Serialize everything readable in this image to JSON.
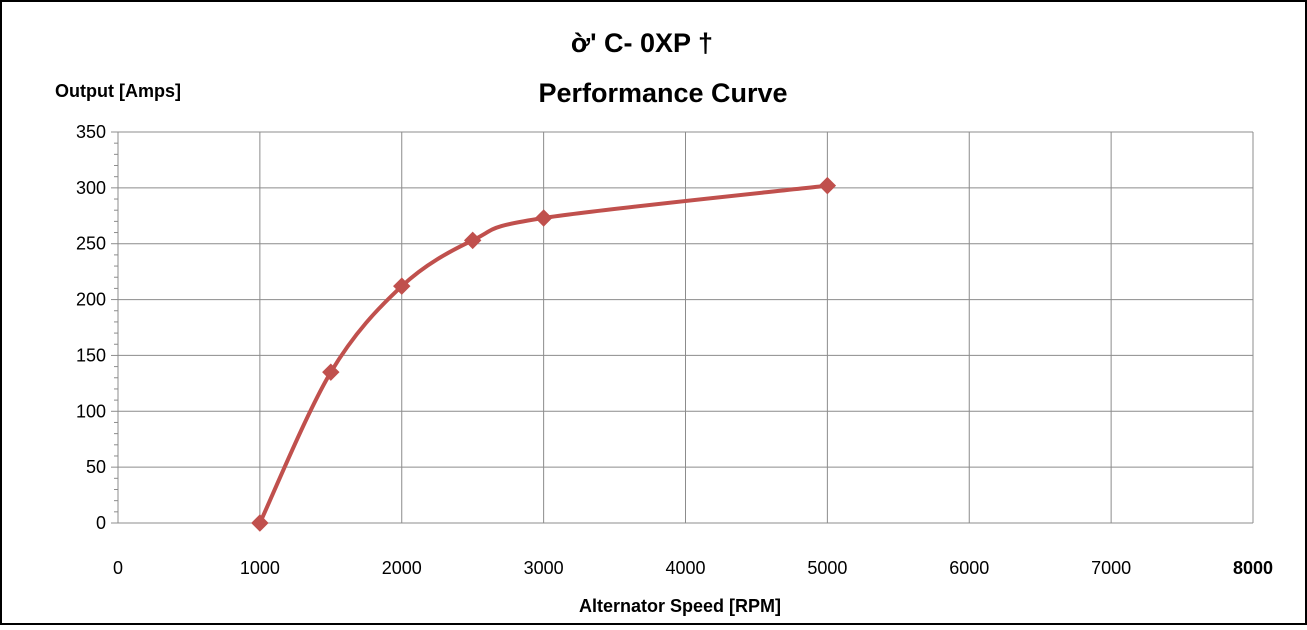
{
  "chart_data": {
    "type": "line",
    "title": "ờ' C-    0XP       †",
    "subtitle": "Performance Curve",
    "xlabel": "Alternator Speed [RPM]",
    "ylabel": "Output [Amps]",
    "xlim": [
      0,
      8000
    ],
    "ylim": [
      0,
      350
    ],
    "x_ticks": [
      0,
      1000,
      2000,
      3000,
      4000,
      5000,
      6000,
      7000,
      8000
    ],
    "x_tick_labels": [
      "0",
      "1000",
      "2000",
      "3000",
      "4000",
      "5000",
      "6000",
      "7000",
      "8000"
    ],
    "y_ticks": [
      0,
      50,
      100,
      150,
      200,
      250,
      300,
      350
    ],
    "y_tick_labels": [
      "0",
      "50",
      "100",
      "150",
      "200",
      "250",
      "300",
      "350"
    ],
    "grid": true,
    "smooth": true,
    "marker": "diamond",
    "series": [
      {
        "x": [
          1000,
          1500,
          2000,
          2500,
          3000,
          5000
        ],
        "y": [
          0,
          135,
          212,
          253,
          273,
          302
        ],
        "color": "#c0504d"
      }
    ]
  }
}
